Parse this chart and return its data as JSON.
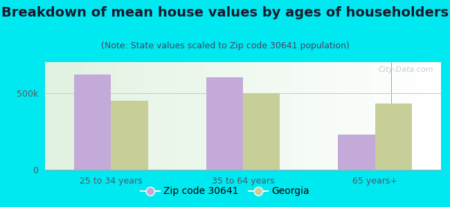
{
  "title": "Breakdown of mean house values by ages of householders",
  "subtitle": "(Note: State values scaled to Zip code 30641 population)",
  "categories": [
    "25 to 34 years",
    "35 to 64 years",
    "65 years+"
  ],
  "zip_values": [
    620000,
    600000,
    230000
  ],
  "state_values": [
    450000,
    500000,
    430000
  ],
  "zip_color": "#c4aad8",
  "state_color": "#c8ce98",
  "background_outer": "#00e8f0",
  "ylim": [
    0,
    700000
  ],
  "ytick_labels": [
    "0",
    "500k"
  ],
  "ytick_values": [
    0,
    500000
  ],
  "legend_zip_label": "Zip code 30641",
  "legend_state_label": "Georgia",
  "watermark": "City-Data.com",
  "title_fontsize": 14,
  "subtitle_fontsize": 9,
  "tick_fontsize": 9,
  "legend_fontsize": 10,
  "bar_width": 0.28
}
